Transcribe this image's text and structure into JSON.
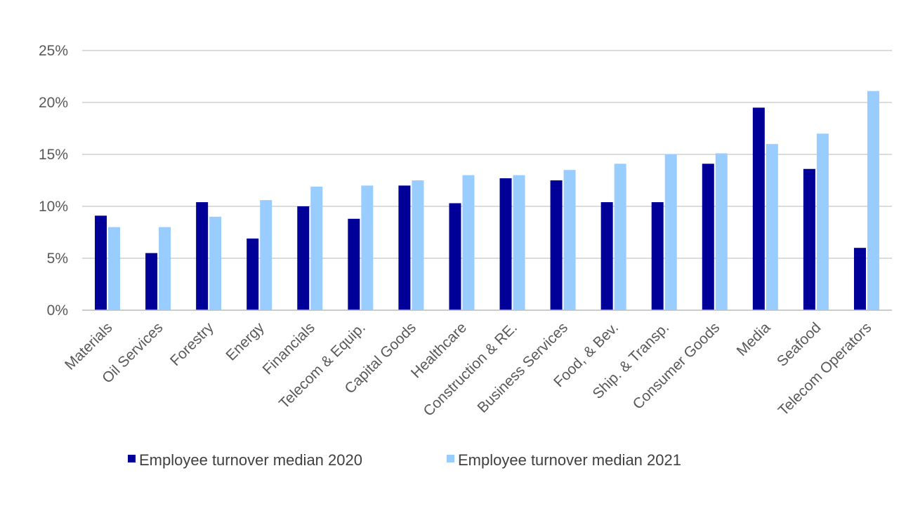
{
  "chart_data": {
    "type": "bar",
    "categories": [
      "Materials",
      "Oil Services",
      "Forestry",
      "Energy",
      "Financials",
      "Telecom & Equip.",
      "Capital Goods",
      "Healthcare",
      "Construction & RE.",
      "Business Services",
      "Food, & Bev.",
      "Ship. & Transp.",
      "Consumer Goods",
      "Media",
      "Seafood",
      "Telecom Operators"
    ],
    "series": [
      {
        "name": "Employee turnover median 2020",
        "color": "#000099",
        "values": [
          9.1,
          5.5,
          10.4,
          6.9,
          10.0,
          8.8,
          12.0,
          10.3,
          12.7,
          12.5,
          10.4,
          10.4,
          14.1,
          19.5,
          13.6,
          6.0
        ]
      },
      {
        "name": "Employee turnover median 2021",
        "color": "#99CCFF",
        "values": [
          8.0,
          8.0,
          9.0,
          10.6,
          11.9,
          12.0,
          12.5,
          13.0,
          13.0,
          13.5,
          14.1,
          15.0,
          15.1,
          16.0,
          17.0,
          21.1
        ]
      }
    ],
    "ylim": [
      0,
      25
    ],
    "yticks": [
      "0%",
      "5%",
      "10%",
      "15%",
      "20%",
      "25%"
    ],
    "ytick_values": [
      0,
      5,
      10,
      15,
      20,
      25
    ],
    "grid": true,
    "legend_position": "bottom",
    "title": "",
    "xlabel": "",
    "ylabel": ""
  }
}
